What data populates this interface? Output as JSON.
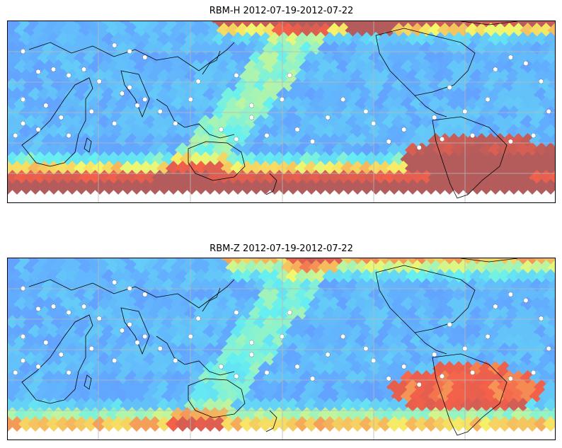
{
  "panels": [
    {
      "id": "rbm-h",
      "title": "RBM-H 2012-07-19-2012-07-22",
      "variant": "h"
    },
    {
      "id": "rbm-z",
      "title": "RBM-Z 2012-07-19-2012-07-22",
      "variant": "z"
    }
  ],
  "colors": {
    "low": "#6a6cff",
    "mid_low": "#62a8ff",
    "mid": "#66f0f0",
    "mid_high": "#f6f86a",
    "high": "#f4604a",
    "max": "#b45c5c"
  },
  "stations": [
    [
      -170,
      35
    ],
    [
      -110,
      40
    ],
    [
      -100,
      35
    ],
    [
      -90,
      30
    ],
    [
      -55,
      10
    ],
    [
      -30,
      15
    ],
    [
      -20,
      -10
    ],
    [
      0,
      -5
    ],
    [
      5,
      15
    ],
    [
      -160,
      18
    ],
    [
      -150,
      20
    ],
    [
      -140,
      15
    ],
    [
      -130,
      20
    ],
    [
      -120,
      10
    ],
    [
      -105,
      0
    ],
    [
      -95,
      -10
    ],
    [
      -80,
      -15
    ],
    [
      -170,
      -5
    ],
    [
      -155,
      -10
    ],
    [
      -145,
      -20
    ],
    [
      -170,
      -25
    ],
    [
      -175,
      -35
    ],
    [
      -160,
      -30
    ],
    [
      -140,
      -35
    ],
    [
      -125,
      -15
    ],
    [
      -110,
      -25
    ],
    [
      -100,
      5
    ],
    [
      -90,
      -5
    ],
    [
      -70,
      -25
    ],
    [
      -60,
      -5
    ],
    [
      -40,
      -30
    ],
    [
      -30,
      -38
    ],
    [
      -20,
      -20
    ],
    [
      -10,
      -35
    ],
    [
      10,
      -30
    ],
    [
      20,
      -40
    ],
    [
      30,
      -20
    ],
    [
      40,
      -5
    ],
    [
      55,
      -15
    ],
    [
      60,
      -25
    ],
    [
      70,
      -40
    ],
    [
      80,
      -30
    ],
    [
      90,
      -45
    ],
    [
      100,
      -20
    ],
    [
      110,
      5
    ],
    [
      120,
      -15
    ],
    [
      135,
      -5
    ],
    [
      140,
      20
    ],
    [
      150,
      30
    ],
    [
      160,
      25
    ],
    [
      170,
      10
    ],
    [
      175,
      -15
    ],
    [
      165,
      -35
    ],
    [
      150,
      -40
    ],
    [
      125,
      -35
    ],
    [
      105,
      -38
    ]
  ]
}
